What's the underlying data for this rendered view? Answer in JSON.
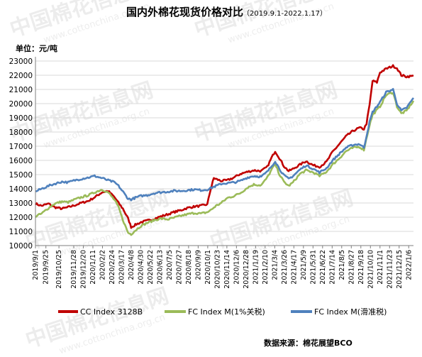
{
  "chart_data": {
    "type": "line",
    "title": "国内外棉花现货价格对比",
    "subtitle": "（2019.9.1-2022.1.17）",
    "ylabel": "单位：元/吨",
    "ylim": [
      10000,
      23000
    ],
    "yticks": [
      10000,
      11000,
      12000,
      13000,
      14000,
      15000,
      16000,
      17000,
      18000,
      19000,
      20000,
      21000,
      22000,
      23000
    ],
    "xlim": [
      "2019-09-01",
      "2022-01-17"
    ],
    "xticks": [
      "2019/9/1",
      "2019/9/25",
      "2019/10/25",
      "2019/11/28",
      "2019/12/20",
      "2020/1/11",
      "2020/2/2",
      "2020/2/24",
      "2020/3/17",
      "2020/4/8",
      "2020/4/30",
      "2020/5/22",
      "2020/6/13",
      "2020/7/5",
      "2020/7/27",
      "2020/8/18",
      "2020/9/9",
      "2020/10/1",
      "2020/10/23",
      "2020/11/14",
      "2020/12/6",
      "2020/12/28",
      "2021/1/19",
      "2021/2/10",
      "2021/3/4",
      "2021/3/26",
      "2021/4/17",
      "2021/5/9",
      "2021/5/31",
      "2021/6/22",
      "2021/7/14",
      "2021/8/5",
      "2021/8/27",
      "2021/9/18",
      "2021/10/10",
      "2021/11/1",
      "2021/11/23",
      "2021/12/15",
      "2022/1/6"
    ],
    "grid": true,
    "legend_position": "bottom",
    "source": "数据来源：棉花展望BCO",
    "watermark": "中国棉花信息网",
    "watermark_url": "www.cottonchina.org.cn",
    "series": [
      {
        "name": "CC Index 3128B",
        "color": "#c00000",
        "points": [
          [
            "2019-09-01",
            12950
          ],
          [
            "2019-09-15",
            12800
          ],
          [
            "2019-10-01",
            12950
          ],
          [
            "2019-10-15",
            12700
          ],
          [
            "2019-11-01",
            12600
          ],
          [
            "2019-11-15",
            12700
          ],
          [
            "2019-12-01",
            12850
          ],
          [
            "2019-12-15",
            13000
          ],
          [
            "2020-01-01",
            13150
          ],
          [
            "2020-01-15",
            13400
          ],
          [
            "2020-02-01",
            13750
          ],
          [
            "2020-02-15",
            13850
          ],
          [
            "2020-03-01",
            13400
          ],
          [
            "2020-03-10",
            13000
          ],
          [
            "2020-03-20",
            12600
          ],
          [
            "2020-04-01",
            11900
          ],
          [
            "2020-04-08",
            11300
          ],
          [
            "2020-04-20",
            11500
          ],
          [
            "2020-05-01",
            11650
          ],
          [
            "2020-05-15",
            11750
          ],
          [
            "2020-06-01",
            11900
          ],
          [
            "2020-06-15",
            12050
          ],
          [
            "2020-07-01",
            12200
          ],
          [
            "2020-07-15",
            12350
          ],
          [
            "2020-08-01",
            12500
          ],
          [
            "2020-08-15",
            12650
          ],
          [
            "2020-09-01",
            12750
          ],
          [
            "2020-09-15",
            12800
          ],
          [
            "2020-09-30",
            12900
          ],
          [
            "2020-10-08",
            14000
          ],
          [
            "2020-10-15",
            14750
          ],
          [
            "2020-11-01",
            14550
          ],
          [
            "2020-11-15",
            14600
          ],
          [
            "2020-12-01",
            14800
          ],
          [
            "2020-12-15",
            15050
          ],
          [
            "2021-01-01",
            15200
          ],
          [
            "2021-01-15",
            15300
          ],
          [
            "2021-02-01",
            15250
          ],
          [
            "2021-02-15",
            15550
          ],
          [
            "2021-02-25",
            16200
          ],
          [
            "2021-03-05",
            16650
          ],
          [
            "2021-03-15",
            16150
          ],
          [
            "2021-03-25",
            15600
          ],
          [
            "2021-04-05",
            15250
          ],
          [
            "2021-04-15",
            15400
          ],
          [
            "2021-05-01",
            15700
          ],
          [
            "2021-05-15",
            15950
          ],
          [
            "2021-06-01",
            15650
          ],
          [
            "2021-06-15",
            15550
          ],
          [
            "2021-07-01",
            15900
          ],
          [
            "2021-07-15",
            16600
          ],
          [
            "2021-08-01",
            17200
          ],
          [
            "2021-08-15",
            17700
          ],
          [
            "2021-09-01",
            18100
          ],
          [
            "2021-09-15",
            18300
          ],
          [
            "2021-09-25",
            18200
          ],
          [
            "2021-10-01",
            18600
          ],
          [
            "2021-10-08",
            19900
          ],
          [
            "2021-10-15",
            21600
          ],
          [
            "2021-10-25",
            21500
          ],
          [
            "2021-11-01",
            22200
          ],
          [
            "2021-11-15",
            22450
          ],
          [
            "2021-12-01",
            22650
          ],
          [
            "2021-12-10",
            22500
          ],
          [
            "2021-12-20",
            22000
          ],
          [
            "2022-01-01",
            21900
          ],
          [
            "2022-01-17",
            21950
          ]
        ]
      },
      {
        "name": "FC Index M(1%关税)",
        "color": "#9bbb59",
        "points": [
          [
            "2019-09-01",
            12050
          ],
          [
            "2019-09-15",
            12250
          ],
          [
            "2019-10-01",
            12650
          ],
          [
            "2019-10-15",
            12950
          ],
          [
            "2019-11-01",
            13100
          ],
          [
            "2019-11-15",
            13050
          ],
          [
            "2019-12-01",
            13250
          ],
          [
            "2019-12-15",
            13400
          ],
          [
            "2020-01-01",
            13550
          ],
          [
            "2020-01-15",
            13750
          ],
          [
            "2020-02-01",
            13950
          ],
          [
            "2020-02-15",
            13750
          ],
          [
            "2020-03-01",
            13200
          ],
          [
            "2020-03-10",
            12700
          ],
          [
            "2020-03-20",
            11800
          ],
          [
            "2020-04-01",
            10900
          ],
          [
            "2020-04-08",
            10800
          ],
          [
            "2020-04-15",
            11000
          ],
          [
            "2020-05-01",
            11400
          ],
          [
            "2020-05-15",
            11600
          ],
          [
            "2020-06-01",
            11800
          ],
          [
            "2020-06-15",
            11900
          ],
          [
            "2020-07-01",
            11850
          ],
          [
            "2020-07-15",
            11950
          ],
          [
            "2020-08-01",
            12100
          ],
          [
            "2020-08-15",
            12200
          ],
          [
            "2020-09-01",
            12300
          ],
          [
            "2020-09-15",
            12250
          ],
          [
            "2020-09-30",
            12350
          ],
          [
            "2020-10-08",
            12500
          ],
          [
            "2020-10-20",
            12800
          ],
          [
            "2020-11-01",
            13000
          ],
          [
            "2020-11-15",
            13350
          ],
          [
            "2020-12-01",
            13500
          ],
          [
            "2020-12-15",
            13700
          ],
          [
            "2021-01-01",
            14100
          ],
          [
            "2021-01-15",
            14300
          ],
          [
            "2021-02-01",
            14250
          ],
          [
            "2021-02-15",
            14800
          ],
          [
            "2021-02-25",
            15350
          ],
          [
            "2021-03-05",
            15750
          ],
          [
            "2021-03-15",
            15000
          ],
          [
            "2021-03-25",
            14500
          ],
          [
            "2021-04-05",
            14200
          ],
          [
            "2021-04-15",
            14450
          ],
          [
            "2021-05-01",
            15050
          ],
          [
            "2021-05-15",
            15300
          ],
          [
            "2021-06-01",
            15150
          ],
          [
            "2021-06-15",
            14900
          ],
          [
            "2021-07-01",
            15200
          ],
          [
            "2021-07-15",
            15700
          ],
          [
            "2021-08-01",
            16200
          ],
          [
            "2021-08-15",
            16650
          ],
          [
            "2021-09-01",
            16900
          ],
          [
            "2021-09-15",
            16950
          ],
          [
            "2021-09-25",
            16750
          ],
          [
            "2021-10-08",
            18500
          ],
          [
            "2021-10-15",
            19200
          ],
          [
            "2021-11-01",
            19800
          ],
          [
            "2021-11-15",
            20600
          ],
          [
            "2021-12-01",
            20800
          ],
          [
            "2021-12-10",
            19800
          ],
          [
            "2021-12-20",
            19300
          ],
          [
            "2022-01-01",
            19500
          ],
          [
            "2022-01-17",
            20200
          ]
        ]
      },
      {
        "name": "FC Index M(滑准税)",
        "color": "#4f81bd",
        "points": [
          [
            "2019-09-01",
            13800
          ],
          [
            "2019-09-15",
            14000
          ],
          [
            "2019-10-01",
            14200
          ],
          [
            "2019-10-15",
            14350
          ],
          [
            "2019-11-01",
            14500
          ],
          [
            "2019-11-15",
            14450
          ],
          [
            "2019-12-01",
            14600
          ],
          [
            "2019-12-15",
            14700
          ],
          [
            "2020-01-01",
            14800
          ],
          [
            "2020-01-15",
            14900
          ],
          [
            "2020-02-01",
            14750
          ],
          [
            "2020-02-15",
            14600
          ],
          [
            "2020-03-01",
            14450
          ],
          [
            "2020-03-10",
            14200
          ],
          [
            "2020-03-20",
            13800
          ],
          [
            "2020-04-01",
            13300
          ],
          [
            "2020-04-08",
            13250
          ],
          [
            "2020-04-20",
            13400
          ],
          [
            "2020-05-01",
            13500
          ],
          [
            "2020-05-15",
            13550
          ],
          [
            "2020-06-01",
            13700
          ],
          [
            "2020-06-15",
            13750
          ],
          [
            "2020-07-01",
            13800
          ],
          [
            "2020-07-15",
            13850
          ],
          [
            "2020-08-01",
            13850
          ],
          [
            "2020-08-15",
            13900
          ],
          [
            "2020-09-01",
            13950
          ],
          [
            "2020-09-15",
            13900
          ],
          [
            "2020-09-30",
            13950
          ],
          [
            "2020-10-08",
            14050
          ],
          [
            "2020-10-20",
            14200
          ],
          [
            "2020-11-01",
            14350
          ],
          [
            "2020-11-15",
            14400
          ],
          [
            "2020-12-01",
            14450
          ],
          [
            "2020-12-15",
            14550
          ],
          [
            "2021-01-01",
            14800
          ],
          [
            "2021-01-15",
            14900
          ],
          [
            "2021-02-01",
            14850
          ],
          [
            "2021-02-15",
            15200
          ],
          [
            "2021-02-25",
            15600
          ],
          [
            "2021-03-05",
            15950
          ],
          [
            "2021-03-15",
            15400
          ],
          [
            "2021-03-25",
            14950
          ],
          [
            "2021-04-05",
            14700
          ],
          [
            "2021-04-15",
            14900
          ],
          [
            "2021-05-01",
            15350
          ],
          [
            "2021-05-15",
            15650
          ],
          [
            "2021-06-01",
            15400
          ],
          [
            "2021-06-15",
            15150
          ],
          [
            "2021-07-01",
            15450
          ],
          [
            "2021-07-15",
            16000
          ],
          [
            "2021-08-01",
            16500
          ],
          [
            "2021-08-15",
            16900
          ],
          [
            "2021-09-01",
            17100
          ],
          [
            "2021-09-15",
            17150
          ],
          [
            "2021-09-25",
            16900
          ],
          [
            "2021-10-08",
            18700
          ],
          [
            "2021-10-15",
            19400
          ],
          [
            "2021-11-01",
            20100
          ],
          [
            "2021-11-15",
            20800
          ],
          [
            "2021-12-01",
            21000
          ],
          [
            "2021-12-10",
            20000
          ],
          [
            "2021-12-20",
            19500
          ],
          [
            "2022-01-01",
            19700
          ],
          [
            "2022-01-17",
            20400
          ]
        ]
      }
    ]
  }
}
